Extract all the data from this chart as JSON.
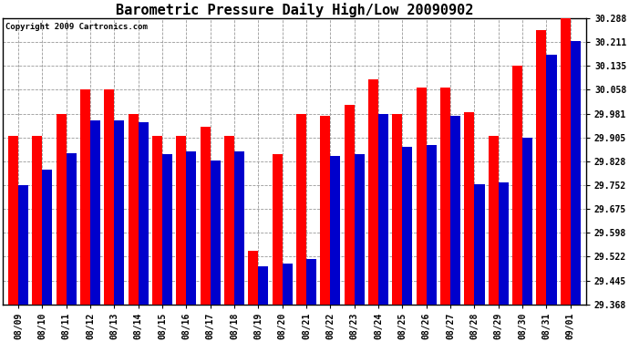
{
  "title": "Barometric Pressure Daily High/Low 20090902",
  "copyright": "Copyright 2009 Cartronics.com",
  "dates": [
    "08/09",
    "08/10",
    "08/11",
    "08/12",
    "08/13",
    "08/14",
    "08/15",
    "08/16",
    "08/17",
    "08/18",
    "08/19",
    "08/20",
    "08/21",
    "08/22",
    "08/23",
    "08/24",
    "08/25",
    "08/26",
    "08/27",
    "08/28",
    "08/29",
    "08/30",
    "08/31",
    "09/01"
  ],
  "highs": [
    29.91,
    29.91,
    29.98,
    30.06,
    30.06,
    29.98,
    29.91,
    29.91,
    29.94,
    29.91,
    29.54,
    29.85,
    29.98,
    29.975,
    30.01,
    30.09,
    29.98,
    30.065,
    30.065,
    29.985,
    29.91,
    30.135,
    30.25,
    30.29
  ],
  "lows": [
    29.75,
    29.8,
    29.855,
    29.96,
    29.96,
    29.955,
    29.85,
    29.86,
    29.83,
    29.86,
    29.49,
    29.5,
    29.515,
    29.845,
    29.85,
    29.98,
    29.875,
    29.88,
    29.975,
    29.755,
    29.76,
    29.905,
    30.17,
    30.215
  ],
  "ylim_min": 29.368,
  "ylim_max": 30.288,
  "yticks": [
    29.368,
    29.445,
    29.522,
    29.598,
    29.675,
    29.752,
    29.828,
    29.905,
    29.981,
    30.058,
    30.135,
    30.211,
    30.288
  ],
  "bar_width": 0.42,
  "high_color": "#ff0000",
  "low_color": "#0000cc",
  "bg_color": "#ffffff",
  "grid_color": "#999999",
  "title_fontsize": 11,
  "tick_fontsize": 7,
  "copyright_fontsize": 6.5
}
